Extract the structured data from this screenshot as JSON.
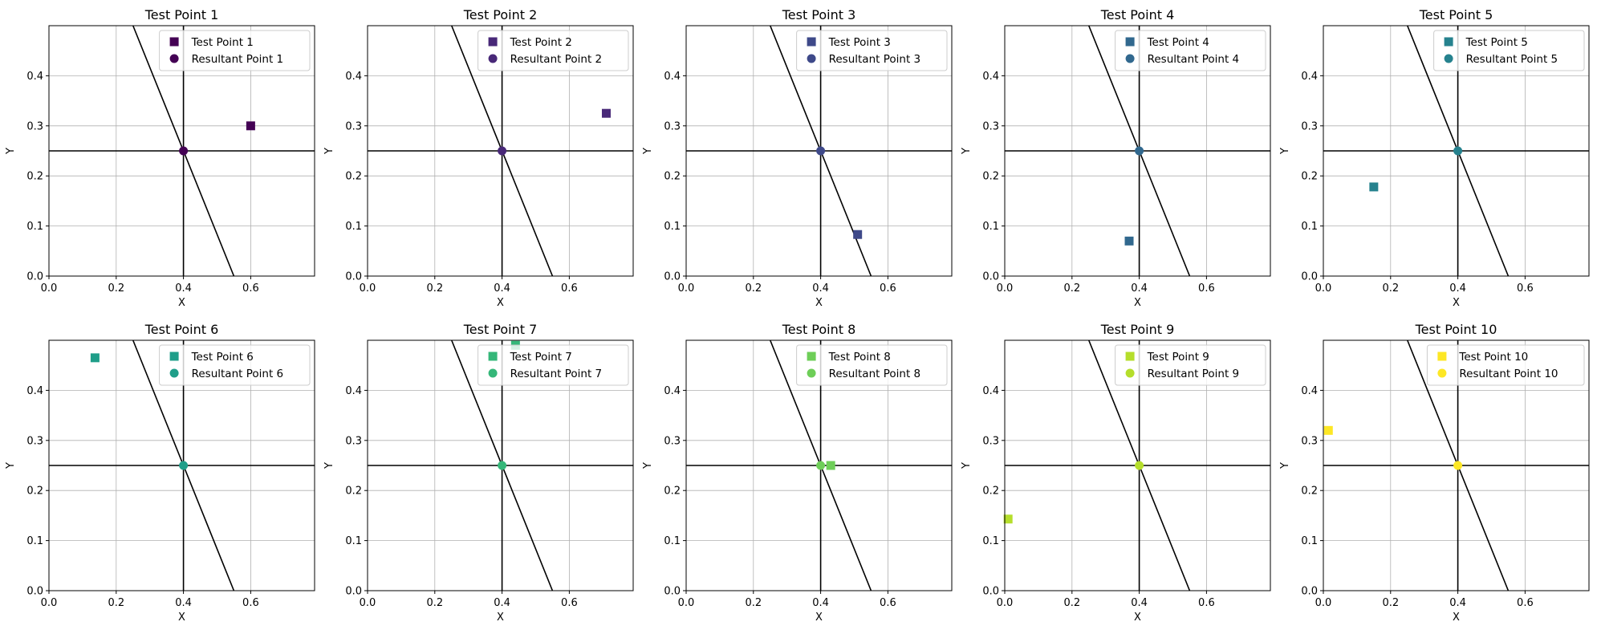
{
  "chart_data": [
    {
      "type": "scatter",
      "title": "Test Point 1",
      "xlabel": "X",
      "ylabel": "Y",
      "xlim": [
        0,
        0.79
      ],
      "ylim": [
        0,
        0.5
      ],
      "xticks": [
        "0.0",
        "0.2",
        "0.4",
        "0.6"
      ],
      "yticks": [
        "0.0",
        "0.1",
        "0.2",
        "0.3",
        "0.4"
      ],
      "grid": true,
      "legend": "upper right",
      "vline_x": 0.4,
      "hline_y": 0.25,
      "slanted_line": [
        [
          0.25,
          0.5
        ],
        [
          0.55,
          0.0
        ]
      ],
      "color": "#440154",
      "series": [
        {
          "name": "Test Point 1",
          "marker": "square",
          "x": 0.6,
          "y": 0.3
        },
        {
          "name": "Resultant Point 1",
          "marker": "circle",
          "x": 0.4,
          "y": 0.25
        }
      ]
    },
    {
      "type": "scatter",
      "title": "Test Point 2",
      "xlabel": "X",
      "ylabel": "Y",
      "xlim": [
        0,
        0.79
      ],
      "ylim": [
        0,
        0.5
      ],
      "xticks": [
        "0.0",
        "0.2",
        "0.4",
        "0.6"
      ],
      "yticks": [
        "0.0",
        "0.1",
        "0.2",
        "0.3",
        "0.4"
      ],
      "grid": true,
      "legend": "upper right",
      "vline_x": 0.4,
      "hline_y": 0.25,
      "slanted_line": [
        [
          0.25,
          0.5
        ],
        [
          0.55,
          0.0
        ]
      ],
      "color": "#482878",
      "series": [
        {
          "name": "Test Point 2",
          "marker": "square",
          "x": 0.71,
          "y": 0.325
        },
        {
          "name": "Resultant Point 2",
          "marker": "circle",
          "x": 0.4,
          "y": 0.25
        }
      ]
    },
    {
      "type": "scatter",
      "title": "Test Point 3",
      "xlabel": "X",
      "ylabel": "Y",
      "xlim": [
        0,
        0.79
      ],
      "ylim": [
        0,
        0.5
      ],
      "xticks": [
        "0.0",
        "0.2",
        "0.4",
        "0.6"
      ],
      "yticks": [
        "0.0",
        "0.1",
        "0.2",
        "0.3",
        "0.4"
      ],
      "grid": true,
      "legend": "upper right",
      "vline_x": 0.4,
      "hline_y": 0.25,
      "slanted_line": [
        [
          0.25,
          0.5
        ],
        [
          0.55,
          0.0
        ]
      ],
      "color": "#3e4989",
      "series": [
        {
          "name": "Test Point 3",
          "marker": "square",
          "x": 0.51,
          "y": 0.083
        },
        {
          "name": "Resultant Point 3",
          "marker": "circle",
          "x": 0.4,
          "y": 0.25
        }
      ]
    },
    {
      "type": "scatter",
      "title": "Test Point 4",
      "xlabel": "X",
      "ylabel": "Y",
      "xlim": [
        0,
        0.79
      ],
      "ylim": [
        0,
        0.5
      ],
      "xticks": [
        "0.0",
        "0.2",
        "0.4",
        "0.6"
      ],
      "yticks": [
        "0.0",
        "0.1",
        "0.2",
        "0.3",
        "0.4"
      ],
      "grid": true,
      "legend": "upper right",
      "vline_x": 0.4,
      "hline_y": 0.25,
      "slanted_line": [
        [
          0.25,
          0.5
        ],
        [
          0.55,
          0.0
        ]
      ],
      "color": "#31688e",
      "series": [
        {
          "name": "Test Point 4",
          "marker": "square",
          "x": 0.37,
          "y": 0.07
        },
        {
          "name": "Resultant Point 4",
          "marker": "circle",
          "x": 0.4,
          "y": 0.25
        }
      ]
    },
    {
      "type": "scatter",
      "title": "Test Point 5",
      "xlabel": "X",
      "ylabel": "Y",
      "xlim": [
        0,
        0.79
      ],
      "ylim": [
        0,
        0.5
      ],
      "xticks": [
        "0.0",
        "0.2",
        "0.4",
        "0.6"
      ],
      "yticks": [
        "0.0",
        "0.1",
        "0.2",
        "0.3",
        "0.4"
      ],
      "grid": true,
      "legend": "upper right",
      "vline_x": 0.4,
      "hline_y": 0.25,
      "slanted_line": [
        [
          0.25,
          0.5
        ],
        [
          0.55,
          0.0
        ]
      ],
      "color": "#26828e",
      "series": [
        {
          "name": "Test Point 5",
          "marker": "square",
          "x": 0.15,
          "y": 0.178
        },
        {
          "name": "Resultant Point 5",
          "marker": "circle",
          "x": 0.4,
          "y": 0.25
        }
      ]
    },
    {
      "type": "scatter",
      "title": "Test Point 6",
      "xlabel": "X",
      "ylabel": "Y",
      "xlim": [
        0,
        0.79
      ],
      "ylim": [
        0,
        0.5
      ],
      "xticks": [
        "0.0",
        "0.2",
        "0.4",
        "0.6"
      ],
      "yticks": [
        "0.0",
        "0.1",
        "0.2",
        "0.3",
        "0.4"
      ],
      "grid": true,
      "legend": "upper right",
      "vline_x": 0.4,
      "hline_y": 0.25,
      "slanted_line": [
        [
          0.25,
          0.5
        ],
        [
          0.55,
          0.0
        ]
      ],
      "color": "#1f9e89",
      "series": [
        {
          "name": "Test Point 6",
          "marker": "square",
          "x": 0.137,
          "y": 0.465
        },
        {
          "name": "Resultant Point 6",
          "marker": "circle",
          "x": 0.4,
          "y": 0.25
        }
      ]
    },
    {
      "type": "scatter",
      "title": "Test Point 7",
      "xlabel": "X",
      "ylabel": "Y",
      "xlim": [
        0,
        0.79
      ],
      "ylim": [
        0,
        0.5
      ],
      "xticks": [
        "0.0",
        "0.2",
        "0.4",
        "0.6"
      ],
      "yticks": [
        "0.0",
        "0.1",
        "0.2",
        "0.3",
        "0.4"
      ],
      "grid": true,
      "legend": "upper right",
      "vline_x": 0.4,
      "hline_y": 0.25,
      "slanted_line": [
        [
          0.25,
          0.5
        ],
        [
          0.55,
          0.0
        ]
      ],
      "color": "#35b779",
      "series": [
        {
          "name": "Test Point 7",
          "marker": "square",
          "x": 0.44,
          "y": 0.49
        },
        {
          "name": "Resultant Point 7",
          "marker": "circle",
          "x": 0.4,
          "y": 0.25
        }
      ]
    },
    {
      "type": "scatter",
      "title": "Test Point 8",
      "xlabel": "X",
      "ylabel": "Y",
      "xlim": [
        0,
        0.79
      ],
      "ylim": [
        0,
        0.5
      ],
      "xticks": [
        "0.0",
        "0.2",
        "0.4",
        "0.6"
      ],
      "yticks": [
        "0.0",
        "0.1",
        "0.2",
        "0.3",
        "0.4"
      ],
      "grid": true,
      "legend": "upper right",
      "vline_x": 0.4,
      "hline_y": 0.25,
      "slanted_line": [
        [
          0.25,
          0.5
        ],
        [
          0.55,
          0.0
        ]
      ],
      "color": "#6ece58",
      "series": [
        {
          "name": "Test Point 8",
          "marker": "square",
          "x": 0.43,
          "y": 0.25
        },
        {
          "name": "Resultant Point 8",
          "marker": "circle",
          "x": 0.4,
          "y": 0.25
        }
      ]
    },
    {
      "type": "scatter",
      "title": "Test Point 9",
      "xlabel": "X",
      "ylabel": "Y",
      "xlim": [
        0,
        0.79
      ],
      "ylim": [
        0,
        0.5
      ],
      "xticks": [
        "0.0",
        "0.2",
        "0.4",
        "0.6"
      ],
      "yticks": [
        "0.0",
        "0.1",
        "0.2",
        "0.3",
        "0.4"
      ],
      "grid": true,
      "legend": "upper right",
      "vline_x": 0.4,
      "hline_y": 0.25,
      "slanted_line": [
        [
          0.25,
          0.5
        ],
        [
          0.55,
          0.0
        ]
      ],
      "color": "#b5de2b",
      "series": [
        {
          "name": "Test Point 9",
          "marker": "square",
          "x": 0.01,
          "y": 0.143
        },
        {
          "name": "Resultant Point 9",
          "marker": "circle",
          "x": 0.4,
          "y": 0.25
        }
      ]
    },
    {
      "type": "scatter",
      "title": "Test Point 10",
      "xlabel": "X",
      "ylabel": "Y",
      "xlim": [
        0,
        0.79
      ],
      "ylim": [
        0,
        0.5
      ],
      "xticks": [
        "0.0",
        "0.2",
        "0.4",
        "0.6"
      ],
      "yticks": [
        "0.0",
        "0.1",
        "0.2",
        "0.3",
        "0.4"
      ],
      "grid": true,
      "legend": "upper right",
      "vline_x": 0.4,
      "hline_y": 0.25,
      "slanted_line": [
        [
          0.25,
          0.5
        ],
        [
          0.55,
          0.0
        ]
      ],
      "color": "#fde725",
      "series": [
        {
          "name": "Test Point 10",
          "marker": "square",
          "x": 0.015,
          "y": 0.32
        },
        {
          "name": "Resultant Point 10",
          "marker": "circle",
          "x": 0.4,
          "y": 0.25
        }
      ]
    }
  ]
}
